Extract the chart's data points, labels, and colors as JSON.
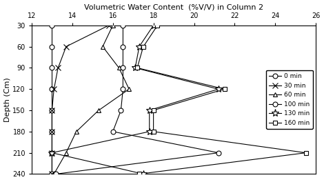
{
  "title": "Volumetric Water Content  (%V/V) in Column 2",
  "ylabel": "Depth (Cm)",
  "xlim": [
    12,
    26
  ],
  "ylim": [
    240,
    30
  ],
  "xticks": [
    12,
    14,
    16,
    18,
    20,
    22,
    24,
    26
  ],
  "yticks": [
    30,
    60,
    90,
    120,
    150,
    180,
    210,
    240
  ],
  "series": [
    {
      "label": "0 min",
      "marker": "o",
      "ms": 5,
      "mfc": "none",
      "depth": [
        30,
        60,
        90,
        120,
        150,
        180,
        210,
        240
      ],
      "vwc": [
        13.0,
        13.0,
        13.0,
        13.0,
        13.0,
        13.0,
        13.0,
        13.0
      ]
    },
    {
      "label": "30 min",
      "marker": "x",
      "ms": 6,
      "mfc": "none",
      "depth": [
        30,
        60,
        90,
        120,
        150,
        180,
        210,
        240
      ],
      "vwc": [
        15.8,
        13.7,
        13.3,
        13.1,
        13.0,
        13.0,
        13.0,
        13.0
      ]
    },
    {
      "label": "60 min",
      "marker": "^",
      "ms": 5,
      "mfc": "none",
      "depth": [
        30,
        60,
        90,
        120,
        150,
        180,
        210,
        240
      ],
      "vwc": [
        16.0,
        15.5,
        16.3,
        16.8,
        15.3,
        14.2,
        13.7,
        13.1
      ]
    },
    {
      "label": "100 min",
      "marker": "o",
      "ms": 5,
      "mfc": "none",
      "depth": [
        30,
        60,
        90,
        120,
        150,
        180,
        210,
        240
      ],
      "vwc": [
        16.5,
        16.5,
        16.5,
        16.5,
        16.4,
        16.0,
        21.2,
        13.2
      ]
    },
    {
      "label": "130 min",
      "marker": "*",
      "ms": 7,
      "mfc": "none",
      "depth": [
        30,
        60,
        90,
        120,
        150,
        180,
        210,
        240
      ],
      "vwc": [
        18.0,
        17.3,
        17.1,
        21.2,
        17.8,
        17.8,
        13.0,
        17.5
      ]
    },
    {
      "label": "160 min",
      "marker": "s",
      "ms": 5,
      "mfc": "none",
      "depth": [
        30,
        60,
        90,
        120,
        150,
        180,
        210,
        240
      ],
      "vwc": [
        18.2,
        17.5,
        17.2,
        21.5,
        18.0,
        18.0,
        25.5,
        17.3
      ]
    }
  ]
}
